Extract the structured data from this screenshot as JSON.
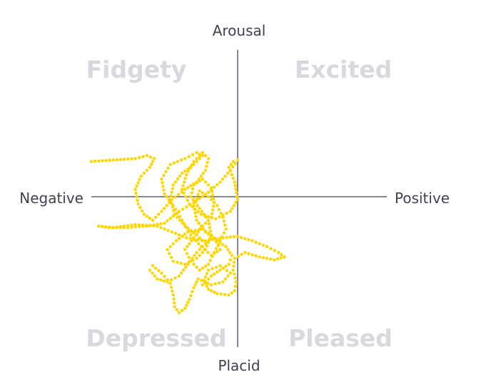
{
  "chart_data": {
    "type": "scatter",
    "title": "",
    "axes": {
      "top": "Arousal",
      "bottom": "Placid",
      "left": "Negative",
      "right": "Positive"
    },
    "quadrants": {
      "top_left": "Fidgety",
      "top_right": "Excited",
      "bottom_left": "Depressed",
      "bottom_right": "Pleased"
    },
    "xlim": [
      -1,
      1
    ],
    "ylim": [
      -1,
      1
    ],
    "grid": false,
    "point_color": "#ffd600",
    "description_of_trace": "dense meandering dotted trajectory concentrated in the negative / low-arousal region",
    "series": [
      {
        "points": [
          [
            -1.0,
            0.24
          ],
          [
            -0.85,
            0.25
          ],
          [
            -0.7,
            0.26
          ],
          [
            -0.62,
            0.28
          ],
          [
            -0.57,
            0.26
          ],
          [
            -0.6,
            0.2
          ],
          [
            -0.66,
            0.14
          ],
          [
            -0.7,
            0.05
          ],
          [
            -0.68,
            -0.05
          ],
          [
            -0.64,
            -0.12
          ],
          [
            -0.58,
            -0.16
          ],
          [
            -0.52,
            -0.1
          ],
          [
            -0.45,
            -0.02
          ],
          [
            -0.36,
            0.05
          ],
          [
            -0.28,
            0.1
          ],
          [
            -0.22,
            0.18
          ],
          [
            -0.2,
            0.26
          ],
          [
            -0.24,
            0.3
          ],
          [
            -0.3,
            0.24
          ],
          [
            -0.35,
            0.15
          ],
          [
            -0.38,
            0.05
          ],
          [
            -0.33,
            -0.05
          ],
          [
            -0.25,
            -0.12
          ],
          [
            -0.15,
            -0.15
          ],
          [
            -0.05,
            -0.1
          ],
          [
            0.0,
            -0.02
          ],
          [
            -0.02,
            0.1
          ],
          [
            -0.06,
            0.2
          ],
          [
            -0.03,
            0.24
          ],
          [
            0.0,
            0.25
          ],
          [
            -0.05,
            0.18
          ],
          [
            -0.12,
            0.1
          ],
          [
            -0.2,
            0.03
          ],
          [
            -0.3,
            -0.04
          ],
          [
            -0.4,
            -0.1
          ],
          [
            -0.5,
            -0.18
          ],
          [
            -0.62,
            -0.2
          ],
          [
            -0.75,
            -0.21
          ],
          [
            -0.88,
            -0.21
          ],
          [
            -0.95,
            -0.2
          ],
          [
            -0.85,
            -0.21
          ],
          [
            -0.7,
            -0.19
          ],
          [
            -0.55,
            -0.2
          ],
          [
            -0.45,
            -0.24
          ],
          [
            -0.35,
            -0.28
          ],
          [
            -0.22,
            -0.3
          ],
          [
            -0.1,
            -0.28
          ],
          [
            0.0,
            -0.27
          ],
          [
            0.1,
            -0.3
          ],
          [
            0.2,
            -0.34
          ],
          [
            0.28,
            -0.38
          ],
          [
            0.32,
            -0.41
          ],
          [
            0.25,
            -0.43
          ],
          [
            0.15,
            -0.41
          ],
          [
            0.05,
            -0.38
          ],
          [
            -0.02,
            -0.42
          ],
          [
            -0.03,
            -0.5
          ],
          [
            -0.01,
            -0.58
          ],
          [
            -0.02,
            -0.64
          ],
          [
            -0.06,
            -0.67
          ],
          [
            -0.14,
            -0.66
          ],
          [
            -0.2,
            -0.63
          ],
          [
            -0.23,
            -0.57
          ],
          [
            -0.2,
            -0.5
          ],
          [
            -0.12,
            -0.47
          ],
          [
            -0.05,
            -0.52
          ],
          [
            -0.1,
            -0.58
          ],
          [
            -0.18,
            -0.6
          ],
          [
            -0.27,
            -0.56
          ],
          [
            -0.3,
            -0.62
          ],
          [
            -0.33,
            -0.7
          ],
          [
            -0.36,
            -0.76
          ],
          [
            -0.4,
            -0.79
          ],
          [
            -0.43,
            -0.75
          ],
          [
            -0.44,
            -0.67
          ],
          [
            -0.46,
            -0.59
          ],
          [
            -0.52,
            -0.52
          ],
          [
            -0.58,
            -0.47
          ],
          [
            -0.6,
            -0.5
          ],
          [
            -0.55,
            -0.56
          ],
          [
            -0.48,
            -0.58
          ],
          [
            -0.4,
            -0.54
          ],
          [
            -0.34,
            -0.46
          ],
          [
            -0.28,
            -0.38
          ],
          [
            -0.22,
            -0.32
          ],
          [
            -0.28,
            -0.26
          ],
          [
            -0.36,
            -0.2
          ],
          [
            -0.43,
            -0.12
          ],
          [
            -0.46,
            -0.02
          ],
          [
            -0.44,
            0.08
          ],
          [
            -0.38,
            0.16
          ],
          [
            -0.3,
            0.22
          ],
          [
            -0.24,
            0.28
          ],
          [
            -0.28,
            0.3
          ],
          [
            -0.36,
            0.26
          ],
          [
            -0.46,
            0.22
          ],
          [
            -0.52,
            0.12
          ],
          [
            -0.5,
            0.02
          ],
          [
            -0.44,
            -0.06
          ],
          [
            -0.38,
            -0.16
          ],
          [
            -0.32,
            -0.26
          ],
          [
            -0.25,
            -0.34
          ],
          [
            -0.18,
            -0.4
          ],
          [
            -0.12,
            -0.36
          ],
          [
            -0.16,
            -0.28
          ],
          [
            -0.24,
            -0.22
          ],
          [
            -0.34,
            -0.24
          ],
          [
            -0.42,
            -0.3
          ],
          [
            -0.48,
            -0.36
          ],
          [
            -0.44,
            -0.44
          ],
          [
            -0.36,
            -0.46
          ],
          [
            -0.28,
            -0.42
          ],
          [
            -0.22,
            -0.36
          ],
          [
            -0.18,
            -0.26
          ],
          [
            -0.2,
            -0.16
          ],
          [
            -0.26,
            -0.08
          ],
          [
            -0.32,
            0.0
          ],
          [
            -0.3,
            0.08
          ],
          [
            -0.24,
            0.12
          ],
          [
            -0.18,
            0.06
          ],
          [
            -0.16,
            -0.04
          ],
          [
            -0.18,
            -0.14
          ],
          [
            -0.24,
            -0.2
          ],
          [
            -0.3,
            -0.28
          ],
          [
            -0.36,
            -0.36
          ],
          [
            -0.32,
            -0.44
          ],
          [
            -0.26,
            -0.5
          ],
          [
            -0.2,
            -0.46
          ],
          [
            -0.16,
            -0.38
          ],
          [
            -0.12,
            -0.3
          ],
          [
            -0.08,
            -0.22
          ],
          [
            -0.1,
            -0.14
          ],
          [
            -0.14,
            -0.06
          ],
          [
            -0.2,
            0.0
          ],
          [
            -0.26,
            0.04
          ],
          [
            -0.3,
            -0.06
          ],
          [
            -0.28,
            -0.16
          ],
          [
            -0.22,
            -0.24
          ],
          [
            -0.14,
            -0.3
          ],
          [
            -0.08,
            -0.34
          ],
          [
            -0.04,
            -0.4
          ],
          [
            -0.06,
            -0.46
          ],
          [
            -0.12,
            -0.5
          ],
          [
            -0.18,
            -0.54
          ],
          [
            -0.24,
            -0.6
          ]
        ]
      }
    ]
  }
}
